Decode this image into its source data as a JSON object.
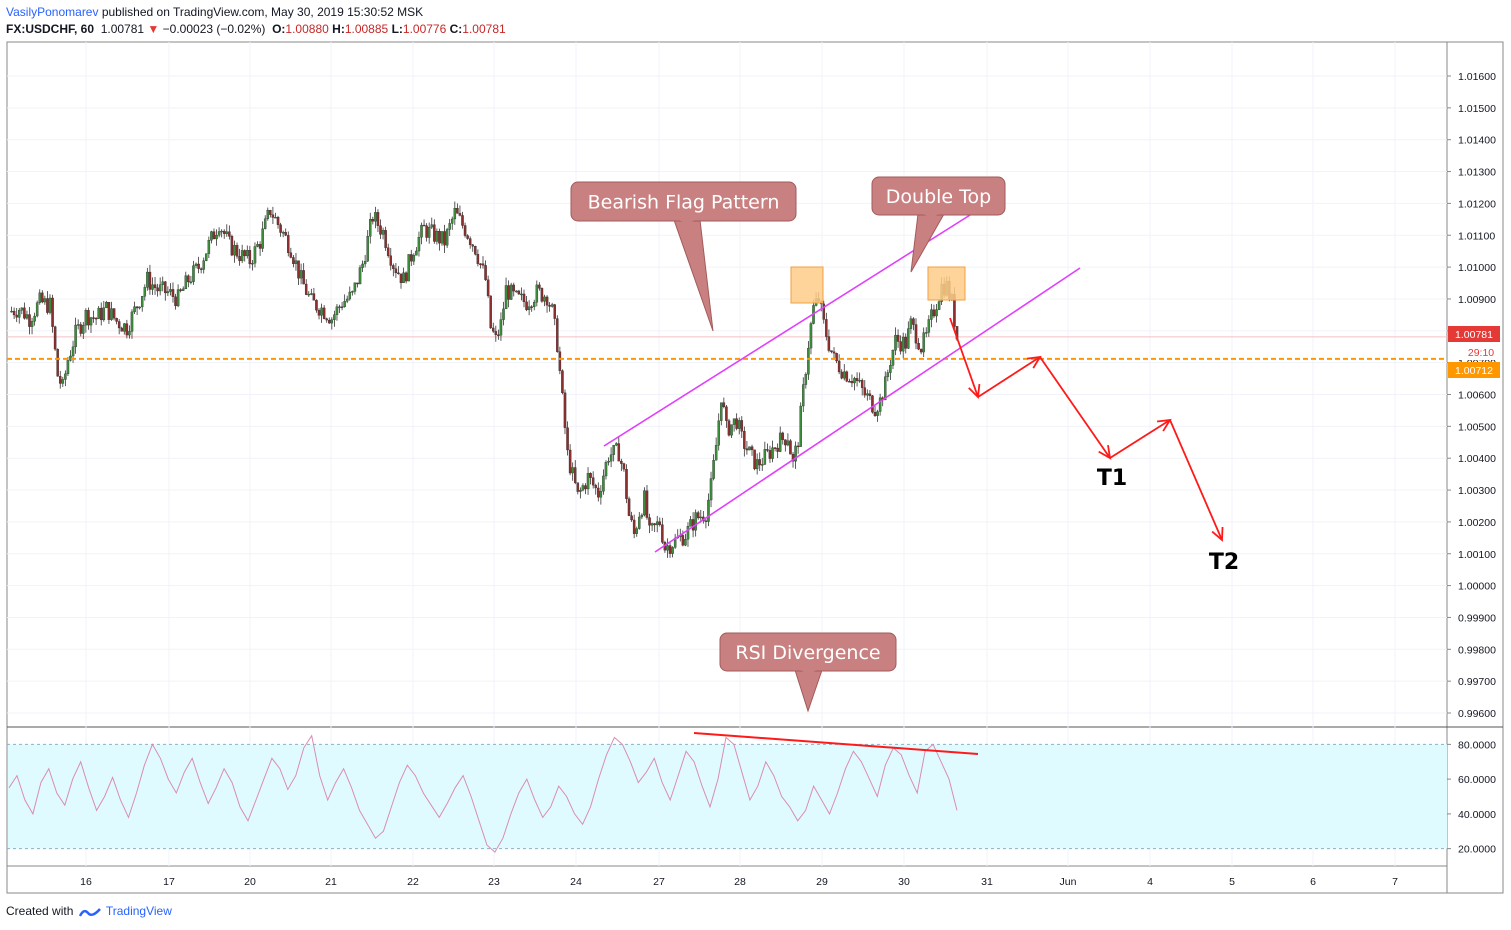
{
  "header": {
    "author": "VasilyPonomarev",
    "published_text": "published on TradingView.com, May 30, 2019 15:30:52 MSK",
    "symbol": "FX:USDCHF, 60",
    "last": "1.00781",
    "change": "−0.00023 (−0.02%)",
    "o_label": "O:",
    "o": "1.00880",
    "h_label": "H:",
    "h": "1.00885",
    "l_label": "L:",
    "l": "1.00776",
    "c_label": "C:",
    "c": "1.00781"
  },
  "footer": {
    "created_with": "Created with",
    "brand": "TradingView"
  },
  "colors": {
    "bull": "#3c8c3c",
    "bear": "#8b2f2f",
    "channel": "#e040fb",
    "arrow": "#ff1a1a",
    "support": "#ff9800",
    "callout_fill": "#c98080",
    "highlight": "#ffcc88",
    "rsi_line": "#d98cb5",
    "rsi_band": "#e0fbff",
    "last_price": "#e53935"
  },
  "chart_data": {
    "type": "candlestick",
    "symbol": "FX:USDCHF",
    "timeframe": "60",
    "x_labels": [
      "16",
      "17",
      "20",
      "21",
      "22",
      "23",
      "24",
      "27",
      "28",
      "29",
      "30",
      "31",
      "Jun",
      "4",
      "5",
      "6",
      "7"
    ],
    "price_axis_ticks": [
      "1.01600",
      "1.01500",
      "1.01400",
      "1.01300",
      "1.01200",
      "1.01100",
      "1.01000",
      "1.00900",
      "1.00800",
      "1.00700",
      "1.00600",
      "1.00500",
      "1.00400",
      "1.00300",
      "1.00200",
      "1.00100",
      "1.00000",
      "0.99900",
      "0.99800",
      "0.99700",
      "0.99600"
    ],
    "price_range": [
      0.9955,
      1.0165
    ],
    "last_price_label": "1.00781",
    "countdown_label": "29:10",
    "support_label": "1.00712",
    "support_level": 1.00712,
    "close_path": [
      [
        0,
        1.0086
      ],
      [
        4,
        1.0087
      ],
      [
        8,
        1.0084
      ],
      [
        12,
        1.0089
      ],
      [
        16,
        1.0088
      ],
      [
        19,
        1.0066
      ],
      [
        21,
        1.0062
      ],
      [
        23,
        1.0071
      ],
      [
        26,
        1.0079
      ],
      [
        30,
        1.0085
      ],
      [
        34,
        1.0084
      ],
      [
        38,
        1.0087
      ],
      [
        42,
        1.0083
      ],
      [
        46,
        1.0081
      ],
      [
        50,
        1.0088
      ],
      [
        54,
        1.0096
      ],
      [
        58,
        1.0093
      ],
      [
        62,
        1.0092
      ],
      [
        66,
        1.009
      ],
      [
        70,
        1.0096
      ],
      [
        74,
        1.01
      ],
      [
        78,
        1.0107
      ],
      [
        82,
        1.0114
      ],
      [
        86,
        1.0107
      ],
      [
        90,
        1.0104
      ],
      [
        94,
        1.0102
      ],
      [
        98,
        1.0108
      ],
      [
        102,
        1.0118
      ],
      [
        106,
        1.0112
      ],
      [
        110,
        1.0106
      ],
      [
        114,
        1.0096
      ],
      [
        118,
        1.0089
      ],
      [
        122,
        1.0087
      ],
      [
        126,
        1.0084
      ],
      [
        130,
        1.0089
      ],
      [
        134,
        1.0091
      ],
      [
        138,
        1.0101
      ],
      [
        142,
        1.0116
      ],
      [
        146,
        1.0111
      ],
      [
        150,
        1.0101
      ],
      [
        154,
        1.0096
      ],
      [
        158,
        1.0106
      ],
      [
        162,
        1.0112
      ],
      [
        166,
        1.011
      ],
      [
        170,
        1.0108
      ],
      [
        174,
        1.0117
      ],
      [
        178,
        1.0112
      ],
      [
        182,
        1.0106
      ],
      [
        186,
        1.0096
      ],
      [
        188,
        1.0081
      ],
      [
        190,
        1.0077
      ],
      [
        192,
        1.0082
      ],
      [
        194,
        1.0093
      ],
      [
        198,
        1.009
      ],
      [
        202,
        1.0089
      ],
      [
        206,
        1.0092
      ],
      [
        210,
        1.0091
      ],
      [
        212,
        1.0086
      ],
      [
        214,
        1.0076
      ],
      [
        216,
        1.0058
      ],
      [
        218,
        1.0041
      ],
      [
        222,
        1.0028
      ],
      [
        226,
        1.0034
      ],
      [
        230,
        1.0029
      ],
      [
        234,
        1.0041
      ],
      [
        238,
        1.0042
      ],
      [
        240,
        1.0035
      ],
      [
        242,
        1.0022
      ],
      [
        244,
        1.0016
      ],
      [
        246,
        1.0023
      ],
      [
        248,
        1.0027
      ],
      [
        250,
        1.0016
      ],
      [
        254,
        1.002
      ],
      [
        256,
        1.0012
      ],
      [
        260,
        1.0014
      ],
      [
        264,
        1.0016
      ],
      [
        268,
        1.0021
      ],
      [
        272,
        1.0023
      ],
      [
        274,
        1.0031
      ],
      [
        276,
        1.0044
      ],
      [
        278,
        1.006
      ],
      [
        280,
        1.0049
      ],
      [
        284,
        1.0052
      ],
      [
        286,
        1.0046
      ],
      [
        290,
        1.004
      ],
      [
        292,
        1.0038
      ],
      [
        296,
        1.0041
      ],
      [
        300,
        1.0045
      ],
      [
        304,
        1.0047
      ],
      [
        306,
        1.0038
      ],
      [
        308,
        1.0046
      ],
      [
        312,
        1.0076
      ],
      [
        314,
        1.0087
      ],
      [
        316,
        1.009
      ],
      [
        318,
        1.0082
      ],
      [
        320,
        1.0076
      ],
      [
        322,
        1.0071
      ],
      [
        326,
        1.0067
      ],
      [
        330,
        1.0065
      ],
      [
        334,
        1.006
      ],
      [
        338,
        1.0056
      ],
      [
        340,
        1.0058
      ],
      [
        342,
        1.0063
      ],
      [
        344,
        1.0071
      ],
      [
        346,
        1.0077
      ],
      [
        350,
        1.0076
      ],
      [
        352,
        1.0082
      ],
      [
        354,
        1.0079
      ],
      [
        356,
        1.0075
      ],
      [
        358,
        1.0078
      ],
      [
        360,
        1.0084
      ],
      [
        362,
        1.0089
      ],
      [
        364,
        1.0094
      ],
      [
        366,
        1.0094
      ],
      [
        368,
        1.0089
      ],
      [
        370,
        1.0078
      ]
    ],
    "rsi": {
      "range": [
        10,
        90
      ],
      "upper_band": 80,
      "lower_band": 20,
      "ticks": [
        "80.0000",
        "60.0000",
        "40.0000",
        "20.0000"
      ],
      "values": [
        55,
        62,
        48,
        40,
        58,
        66,
        52,
        45,
        60,
        70,
        55,
        42,
        50,
        61,
        48,
        38,
        52,
        68,
        80,
        72,
        60,
        52,
        64,
        72,
        58,
        46,
        55,
        66,
        58,
        44,
        36,
        48,
        60,
        72,
        66,
        54,
        62,
        78,
        85,
        62,
        48,
        58,
        66,
        55,
        42,
        34,
        26,
        30,
        44,
        58,
        68,
        62,
        52,
        45,
        38,
        46,
        55,
        62,
        50,
        36,
        22,
        18,
        26,
        40,
        52,
        60,
        48,
        38,
        44,
        56,
        50,
        40,
        34,
        44,
        60,
        74,
        84,
        80,
        70,
        58,
        64,
        72,
        58,
        48,
        62,
        76,
        70,
        56,
        44,
        60,
        84,
        80,
        64,
        48,
        56,
        70,
        62,
        50,
        44,
        36,
        42,
        56,
        48,
        40,
        52,
        66,
        76,
        70,
        60,
        50,
        68,
        78,
        74,
        62,
        52,
        76,
        80,
        70,
        60,
        42
      ]
    },
    "annotations": {
      "flag": "Bearish Flag Pattern",
      "double_top": "Double Top",
      "rsi_divergence": "RSI Divergence",
      "target1": "T1",
      "target2": "T2"
    },
    "projection": [
      [
        370,
        1.0085
      ],
      [
        378,
        1.0059
      ],
      [
        390,
        1.0071
      ],
      [
        400,
        1.00712
      ],
      [
        420,
        1.0039
      ],
      [
        435,
        1.0051
      ],
      [
        446,
        1.0013
      ]
    ],
    "targets": {
      "T1": 1.0039,
      "T2": 1.0013
    }
  }
}
